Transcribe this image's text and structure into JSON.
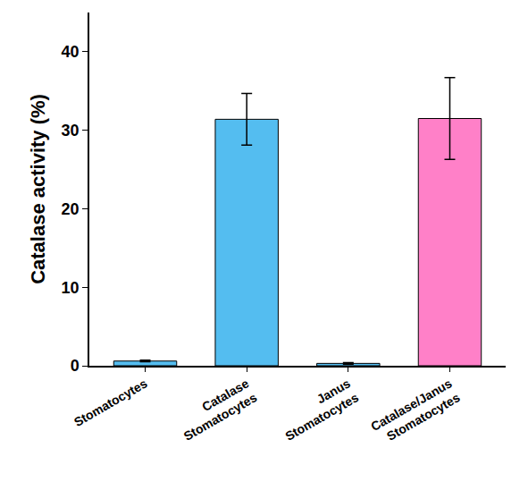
{
  "chart_data": {
    "type": "bar",
    "y_label": "Catalase activity (%)",
    "categories": [
      "Stomatocytes",
      "Catalase Stomatocytes",
      "Janus Stomatocytes",
      "Catalase/Janus Stomatocytes"
    ],
    "values": [
      0.6,
      31.4,
      0.3,
      31.5
    ],
    "error": [
      0.1,
      3.3,
      0.1,
      5.2
    ],
    "colors": [
      "#54bdf0",
      "#54bdf0",
      "#54bdf0",
      "#ff80c8"
    ],
    "ylim": [
      0,
      45
    ],
    "yticks": [
      0,
      10,
      20,
      30,
      40
    ],
    "grid": false
  }
}
